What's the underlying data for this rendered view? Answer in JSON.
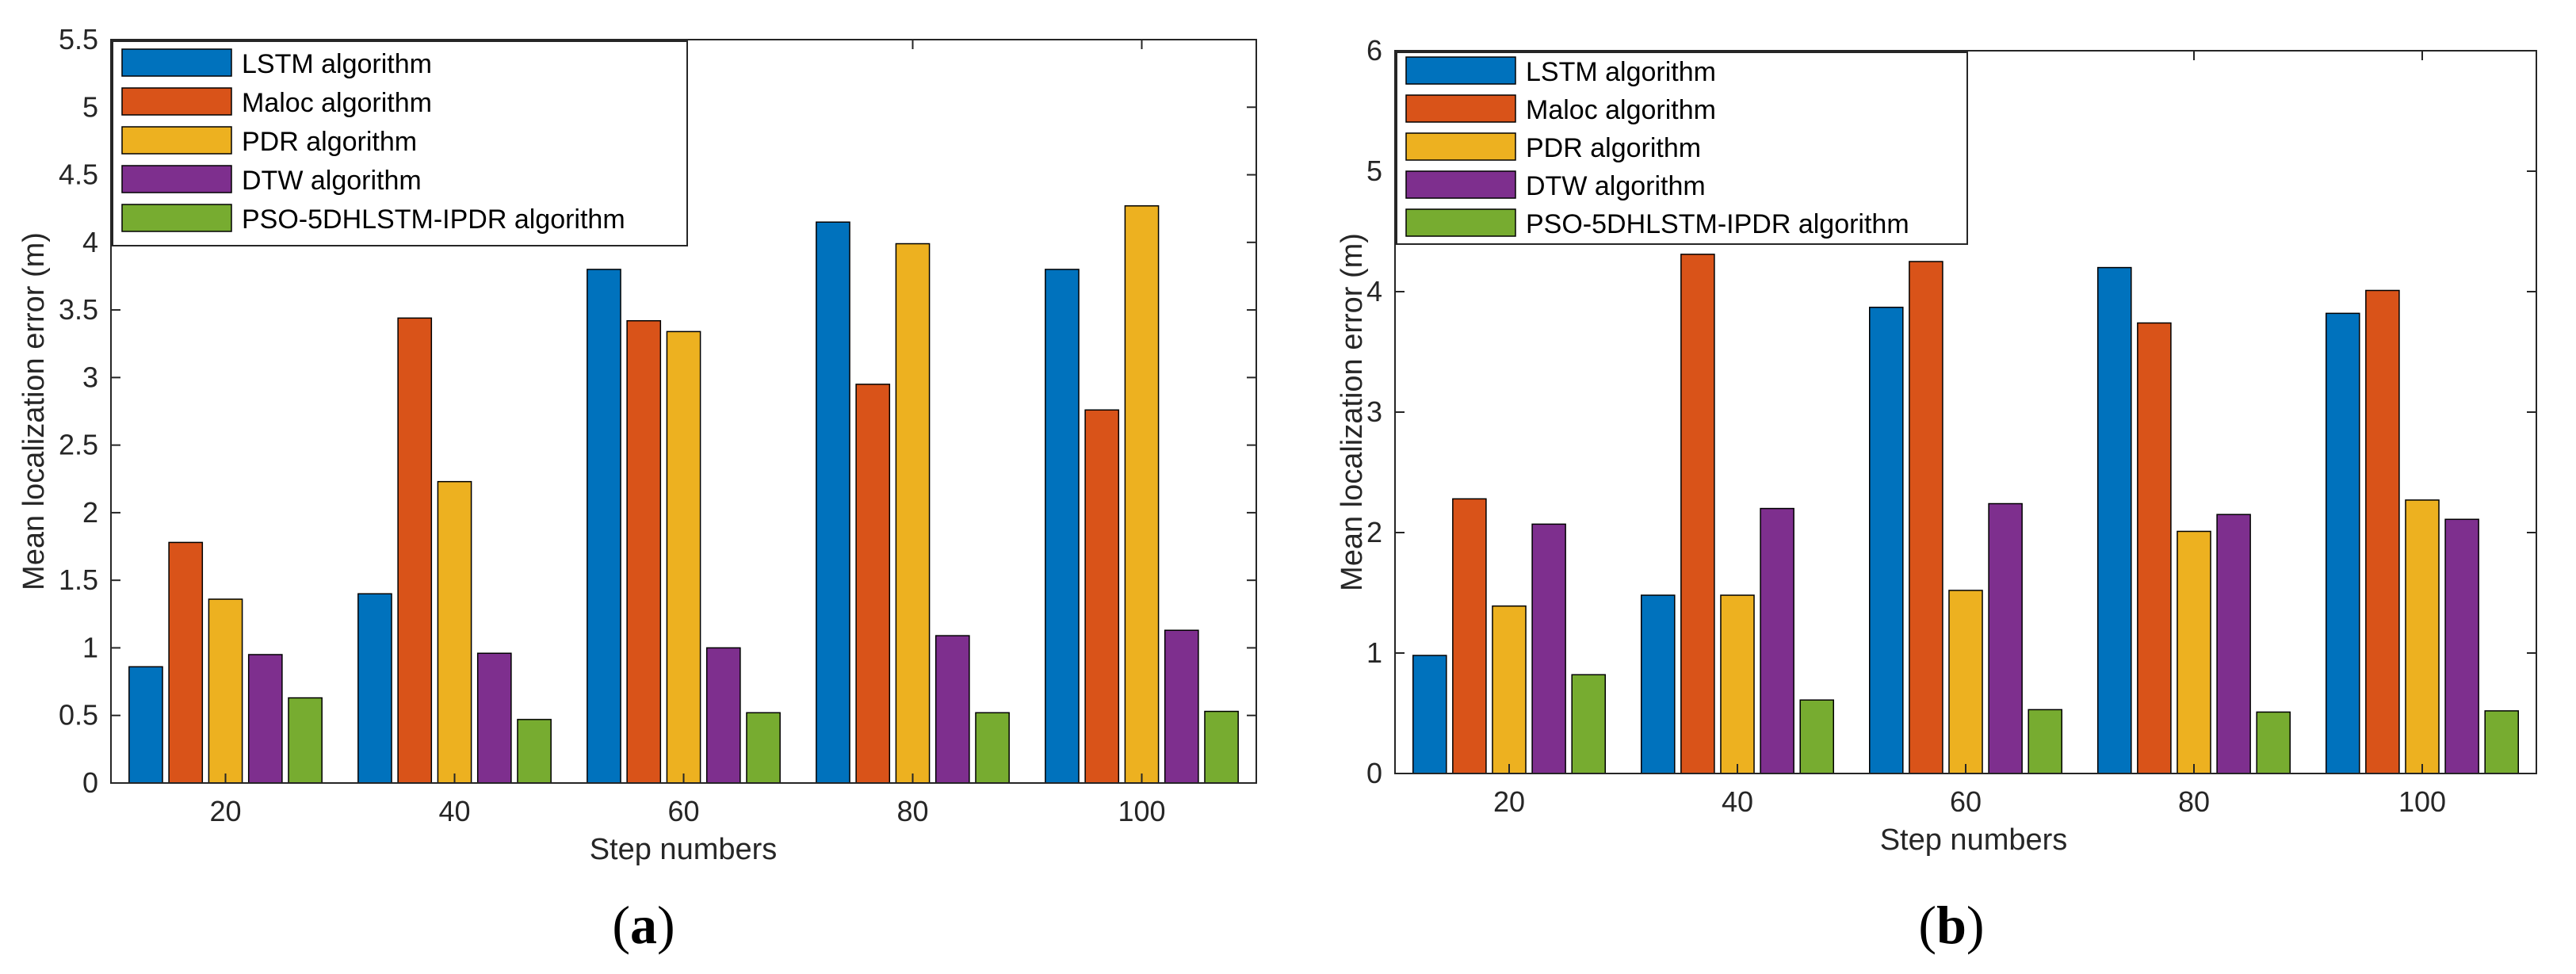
{
  "colors": {
    "LSTM": "#0072BD",
    "Maloc": "#D95319",
    "PDR": "#EDB120",
    "DTW": "#7E2F8E",
    "PSO": "#77AC30"
  },
  "chart_data": [
    {
      "type": "bar",
      "caption_letter": "a",
      "caption_open": "(",
      "caption_close": ")",
      "xlabel": "Step numbers",
      "ylabel": "Mean localization error (m)",
      "categories": [
        "20",
        "40",
        "60",
        "80",
        "100"
      ],
      "ylim": [
        0,
        5.5
      ],
      "yticks": [
        0,
        0.5,
        1,
        1.5,
        2,
        2.5,
        3,
        3.5,
        4,
        4.5,
        5,
        5.5
      ],
      "ytick_labels": [
        "0",
        "0.5",
        "1",
        "1.5",
        "2",
        "2.5",
        "3",
        "3.5",
        "4",
        "4.5",
        "5",
        "5.5"
      ],
      "legend_position": "top-left",
      "series": [
        {
          "name": "LSTM algorithm",
          "key": "LSTM",
          "values": [
            0.86,
            1.4,
            3.8,
            4.15,
            3.8
          ]
        },
        {
          "name": "Maloc algorithm",
          "key": "Maloc",
          "values": [
            1.78,
            3.44,
            3.42,
            2.95,
            2.76
          ]
        },
        {
          "name": "PDR algorithm",
          "key": "PDR",
          "values": [
            1.36,
            2.23,
            3.34,
            3.99,
            4.27
          ]
        },
        {
          "name": "DTW algorithm",
          "key": "DTW",
          "values": [
            0.95,
            0.96,
            1.0,
            1.09,
            1.13
          ]
        },
        {
          "name": "PSO-5DHLSTM-IPDR  algorithm",
          "key": "PSO",
          "values": [
            0.63,
            0.47,
            0.52,
            0.52,
            0.53
          ]
        }
      ]
    },
    {
      "type": "bar",
      "caption_letter": "b",
      "caption_open": "(",
      "caption_close": ")",
      "xlabel": "Step numbers",
      "ylabel": "Mean localization error (m)",
      "categories": [
        "20",
        "40",
        "60",
        "80",
        "100"
      ],
      "ylim": [
        0,
        6
      ],
      "yticks": [
        0,
        1,
        2,
        3,
        4,
        5,
        6
      ],
      "ytick_labels": [
        "0",
        "1",
        "2",
        "3",
        "4",
        "5",
        "6"
      ],
      "legend_position": "top-left",
      "series": [
        {
          "name": "LSTM algorithm",
          "key": "LSTM",
          "values": [
            0.98,
            1.48,
            3.87,
            4.2,
            3.82
          ]
        },
        {
          "name": "Maloc algorithm",
          "key": "Maloc",
          "values": [
            2.28,
            4.31,
            4.25,
            3.74,
            4.01
          ]
        },
        {
          "name": "PDR algorithm",
          "key": "PDR",
          "values": [
            1.39,
            1.48,
            1.52,
            2.01,
            2.27
          ]
        },
        {
          "name": "DTW algorithm",
          "key": "DTW",
          "values": [
            2.07,
            2.2,
            2.24,
            2.15,
            2.11
          ]
        },
        {
          "name": "PSO-5DHLSTM-IPDR algorithm",
          "key": "PSO",
          "values": [
            0.82,
            0.61,
            0.53,
            0.51,
            0.52
          ]
        }
      ]
    }
  ]
}
